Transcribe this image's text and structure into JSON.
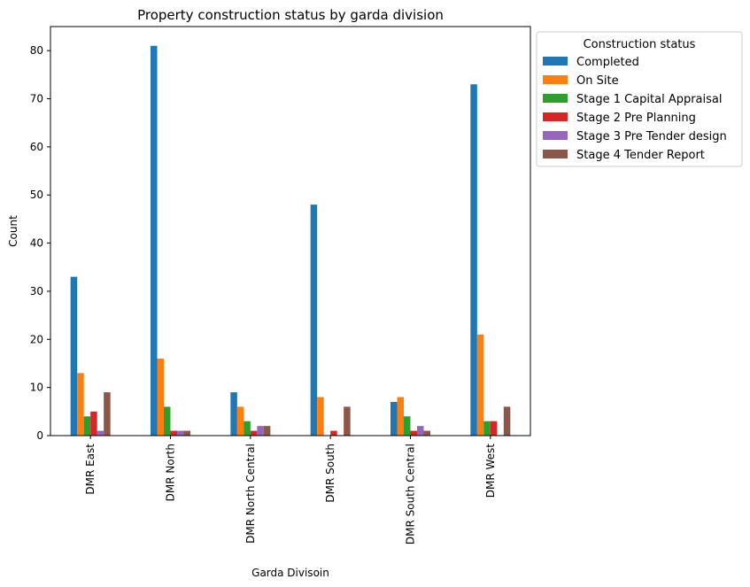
{
  "chart_data": {
    "type": "bar",
    "title": "Property construction status by garda division",
    "xlabel": "Garda Divisoin",
    "ylabel": "Count",
    "ylim": [
      0,
      85
    ],
    "yticks": [
      0,
      10,
      20,
      30,
      40,
      50,
      60,
      70,
      80
    ],
    "grid": false,
    "legend_title": "Construction status",
    "legend_position": "outside top-right",
    "categories": [
      "DMR East",
      "DMR North",
      "DMR North Central",
      "DMR South",
      "DMR South Central",
      "DMR West"
    ],
    "series": [
      {
        "name": "Completed",
        "color": "#1f77b4",
        "values": [
          33,
          81,
          9,
          48,
          7,
          73
        ]
      },
      {
        "name": "On Site",
        "color": "#ff7f0e",
        "values": [
          13,
          16,
          6,
          8,
          8,
          21
        ]
      },
      {
        "name": "Stage 1 Capital Appraisal",
        "color": "#2ca02c",
        "values": [
          4,
          6,
          3,
          0,
          4,
          3
        ]
      },
      {
        "name": "Stage 2 Pre Planning",
        "color": "#d62728",
        "values": [
          5,
          1,
          1,
          1,
          1,
          3
        ]
      },
      {
        "name": "Stage 3 Pre Tender design",
        "color": "#9467bd",
        "values": [
          1,
          1,
          2,
          0,
          2,
          0
        ]
      },
      {
        "name": "Stage 4 Tender Report",
        "color": "#8c564b",
        "values": [
          9,
          1,
          2,
          6,
          1,
          6
        ]
      }
    ]
  }
}
